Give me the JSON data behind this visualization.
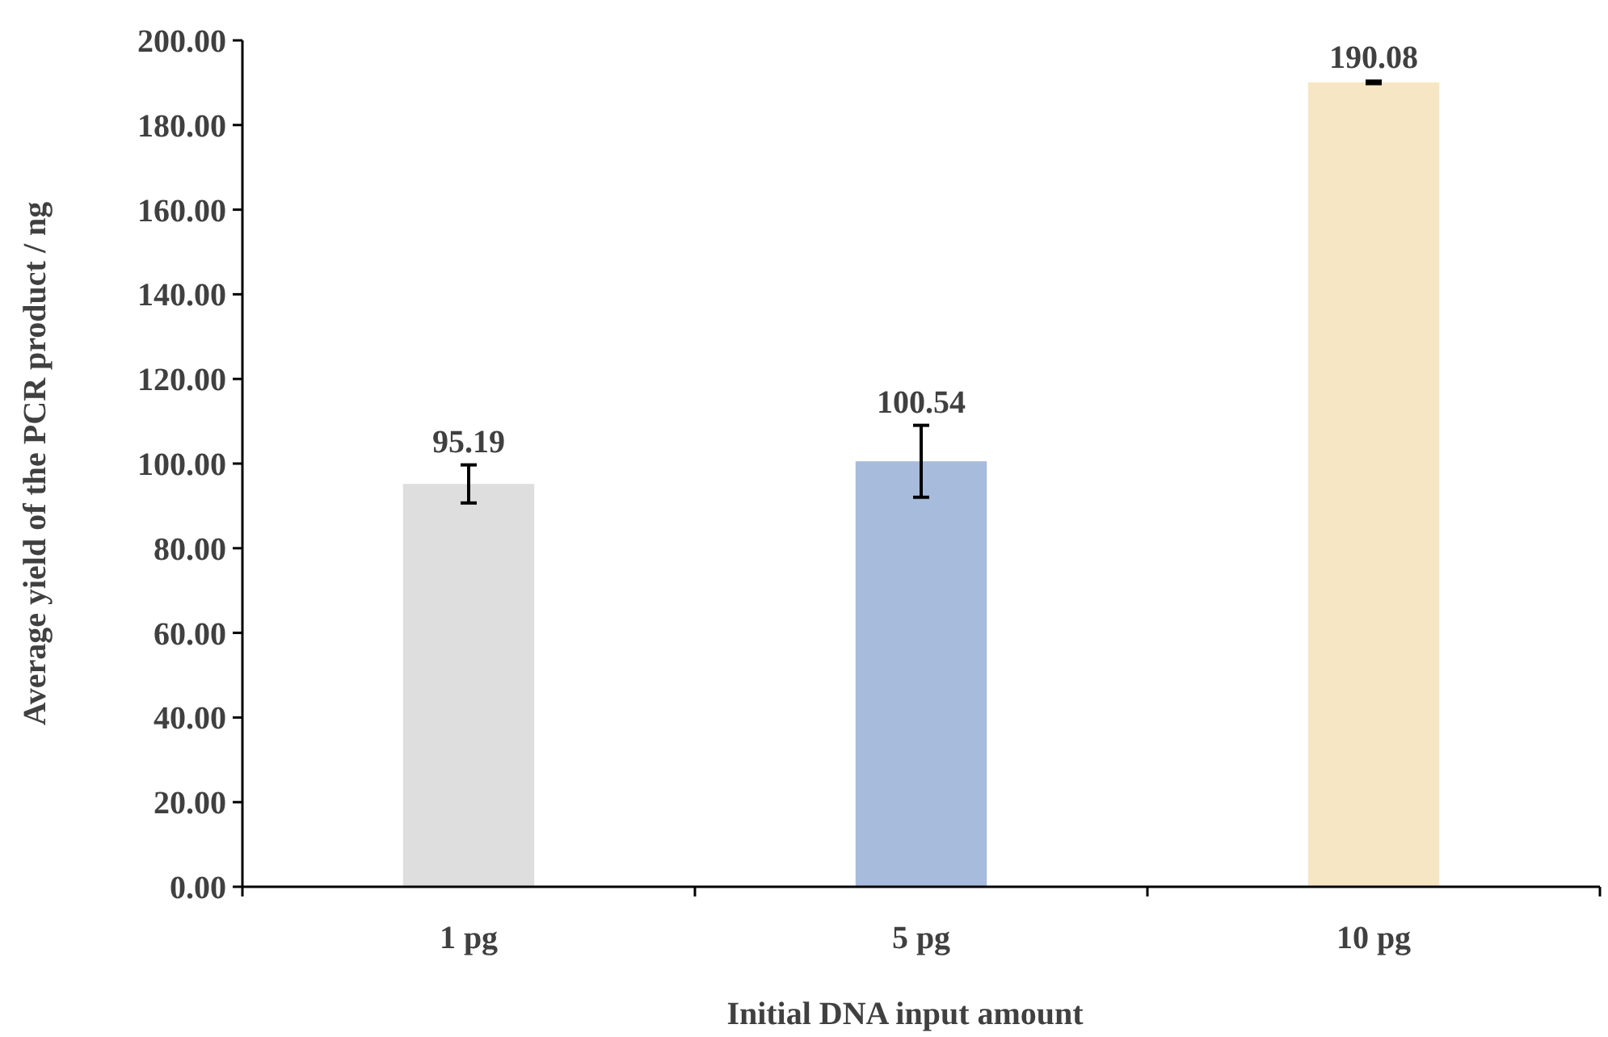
{
  "chart_data": {
    "type": "bar",
    "xlabel": "Initial DNA input amount",
    "ylabel": "Average yield of the PCR product / ng",
    "categories": [
      "1 pg",
      "5 pg",
      "10 pg"
    ],
    "values": [
      95.19,
      100.54,
      190.08
    ],
    "colors": [
      "#dedede",
      "#a7bbdc",
      "#f7e6c3"
    ],
    "errors": [
      4.5,
      8.5,
      0.3
    ],
    "data_labels": true,
    "ylim": [
      0,
      200
    ],
    "yticks": [
      {
        "value": 0,
        "label": "0.00"
      },
      {
        "value": 20,
        "label": "20.00"
      },
      {
        "value": 40,
        "label": "40.00"
      },
      {
        "value": 60,
        "label": "60.00"
      },
      {
        "value": 80,
        "label": "80.00"
      },
      {
        "value": 100,
        "label": "100.00"
      },
      {
        "value": 120,
        "label": "120.00"
      },
      {
        "value": 140,
        "label": "140.00"
      },
      {
        "value": 160,
        "label": "160.00"
      },
      {
        "value": 180,
        "label": "180.00"
      },
      {
        "value": 200,
        "label": "200.00"
      }
    ],
    "grid": false
  }
}
